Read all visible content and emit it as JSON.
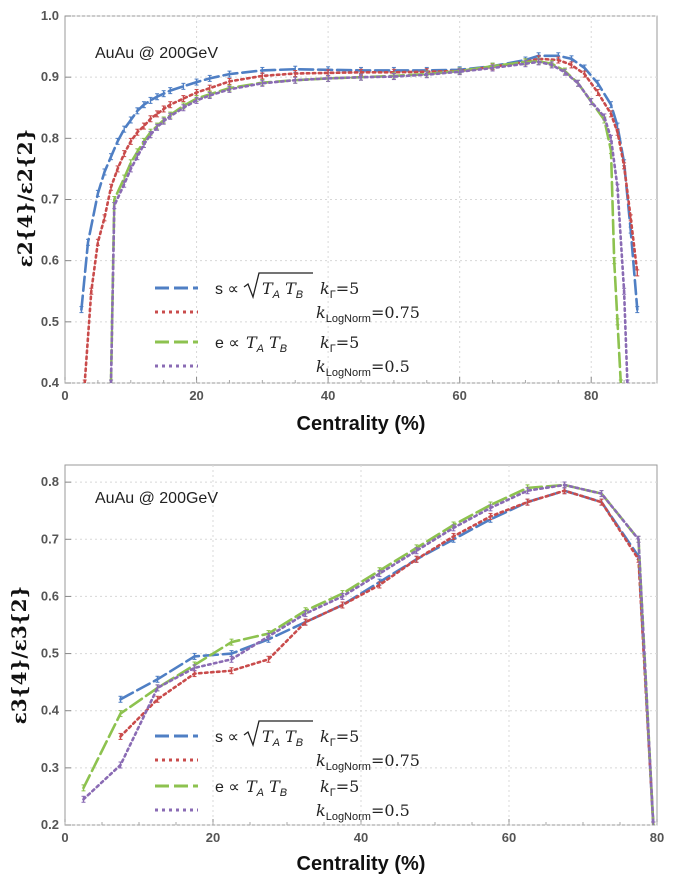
{
  "chart_data": [
    {
      "type": "line",
      "annotation": "AuAu @ 200GeV",
      "xlabel": "Centrality (%)",
      "ylabel": "ε2{4}/ε2{2}",
      "xlim": [
        0,
        90
      ],
      "ylim": [
        0.4,
        1.0
      ],
      "xticks": [
        "0",
        "20",
        "40",
        "60",
        "80"
      ],
      "yticks": [
        "0.4",
        "0.5",
        "0.6",
        "0.7",
        "0.8",
        "0.9",
        "1.0"
      ],
      "legend": [
        {
          "label": "s ∝ √(TA TB)",
          "k": "kΓ=5"
        },
        {
          "label": "",
          "k": "kLogNorm=0.75"
        },
        {
          "label": "e ∝ TA TB",
          "k": "kΓ=5"
        },
        {
          "label": "",
          "k": "kLogNorm=0.5"
        }
      ],
      "series": [
        {
          "color": "#4f7fc4",
          "style": "dashed",
          "x": [
            2.5,
            3.5,
            5,
            6,
            7,
            8,
            9,
            10,
            11,
            12,
            13,
            14,
            15,
            16,
            18,
            20,
            22,
            25,
            30,
            35,
            40,
            45,
            50,
            55,
            60,
            65,
            70,
            72,
            75,
            77,
            79,
            81,
            83,
            84,
            85,
            86,
            87
          ],
          "y": [
            0.52,
            0.63,
            0.71,
            0.745,
            0.77,
            0.795,
            0.815,
            0.83,
            0.845,
            0.855,
            0.862,
            0.868,
            0.873,
            0.878,
            0.885,
            0.892,
            0.898,
            0.905,
            0.911,
            0.913,
            0.912,
            0.911,
            0.911,
            0.911,
            0.912,
            0.918,
            0.928,
            0.935,
            0.935,
            0.93,
            0.915,
            0.89,
            0.855,
            0.82,
            0.76,
            0.65,
            0.52
          ]
        },
        {
          "color": "#c94b4b",
          "style": "dotted",
          "x": [
            3,
            4,
            5,
            6,
            7,
            8,
            9,
            10,
            11,
            12,
            13,
            14,
            15,
            16,
            18,
            20,
            22,
            25,
            30,
            35,
            40,
            45,
            50,
            55,
            60,
            65,
            70,
            72,
            75,
            77,
            79,
            81,
            83,
            84,
            85,
            86,
            87
          ],
          "y": [
            0.4,
            0.55,
            0.63,
            0.67,
            0.72,
            0.75,
            0.775,
            0.795,
            0.81,
            0.82,
            0.832,
            0.84,
            0.848,
            0.855,
            0.865,
            0.875,
            0.882,
            0.893,
            0.902,
            0.906,
            0.907,
            0.908,
            0.908,
            0.909,
            0.91,
            0.917,
            0.925,
            0.93,
            0.928,
            0.92,
            0.905,
            0.875,
            0.84,
            0.81,
            0.755,
            0.67,
            0.58
          ]
        },
        {
          "color": "#8dc24f",
          "style": "dashed",
          "x": [
            7,
            7.5,
            9,
            10,
            11,
            12,
            13,
            14,
            15,
            16,
            18,
            20,
            22,
            25,
            30,
            35,
            40,
            45,
            50,
            55,
            60,
            65,
            70,
            72,
            74,
            76,
            78,
            80,
            82,
            83,
            83.5,
            84,
            84.5
          ],
          "y": [
            0.4,
            0.7,
            0.735,
            0.76,
            0.778,
            0.795,
            0.81,
            0.82,
            0.83,
            0.838,
            0.853,
            0.865,
            0.872,
            0.882,
            0.891,
            0.895,
            0.898,
            0.9,
            0.902,
            0.905,
            0.91,
            0.918,
            0.925,
            0.926,
            0.922,
            0.91,
            0.89,
            0.86,
            0.83,
            0.78,
            0.6,
            0.5,
            0.4
          ]
        },
        {
          "color": "#8a6bb4",
          "style": "dotted",
          "x": [
            7,
            7.5,
            9,
            10,
            11,
            12,
            13,
            14,
            15,
            16,
            18,
            20,
            22,
            25,
            30,
            35,
            40,
            45,
            50,
            55,
            60,
            65,
            70,
            72,
            74,
            76,
            78,
            80,
            82,
            83,
            84,
            85,
            85.5
          ],
          "y": [
            0.4,
            0.69,
            0.725,
            0.75,
            0.77,
            0.79,
            0.806,
            0.818,
            0.828,
            0.836,
            0.85,
            0.862,
            0.87,
            0.88,
            0.89,
            0.895,
            0.898,
            0.9,
            0.901,
            0.904,
            0.909,
            0.915,
            0.922,
            0.925,
            0.92,
            0.908,
            0.89,
            0.86,
            0.835,
            0.8,
            0.72,
            0.55,
            0.4
          ]
        }
      ]
    },
    {
      "type": "line",
      "annotation": "AuAu @ 200GeV",
      "xlabel": "Centrality (%)",
      "ylabel": "ε3{4}/ε3{2}",
      "xlim": [
        0,
        80
      ],
      "ylim": [
        0.2,
        0.83
      ],
      "xticks": [
        "0",
        "20",
        "40",
        "60",
        "80"
      ],
      "yticks": [
        "0.2",
        "0.3",
        "0.4",
        "0.5",
        "0.6",
        "0.7",
        "0.8"
      ],
      "legend": [
        {
          "label": "s ∝ √(TA TB)",
          "k": "kΓ=5"
        },
        {
          "label": "",
          "k": "kLogNorm=0.75"
        },
        {
          "label": "e ∝ TA TB",
          "k": "kΓ=5"
        },
        {
          "label": "",
          "k": "kLogNorm=0.5"
        }
      ],
      "series": [
        {
          "color": "#4f7fc4",
          "style": "dashed",
          "x": [
            7.5,
            12.5,
            17.5,
            22.5,
            27.5,
            32.5,
            37.5,
            42.5,
            47.5,
            52.5,
            57.5,
            62.5,
            67.5,
            72.5,
            77.5,
            79.5
          ],
          "y": [
            0.42,
            0.455,
            0.495,
            0.5,
            0.525,
            0.555,
            0.585,
            0.625,
            0.665,
            0.7,
            0.735,
            0.765,
            0.785,
            0.765,
            0.67,
            0.2
          ]
        },
        {
          "color": "#c94b4b",
          "style": "dotted",
          "x": [
            7.5,
            12.5,
            17.5,
            22.5,
            27.5,
            32.5,
            37.5,
            42.5,
            47.5,
            52.5,
            57.5,
            62.5,
            67.5,
            72.5,
            77.5,
            79.5
          ],
          "y": [
            0.355,
            0.42,
            0.465,
            0.47,
            0.49,
            0.555,
            0.585,
            0.62,
            0.665,
            0.705,
            0.74,
            0.765,
            0.785,
            0.765,
            0.665,
            0.2
          ]
        },
        {
          "color": "#8dc24f",
          "style": "dashed",
          "x": [
            2.5,
            7.5,
            12.5,
            17.5,
            22.5,
            27.5,
            32.5,
            37.5,
            42.5,
            47.5,
            52.5,
            57.5,
            62.5,
            67.5,
            72.5,
            77.5,
            79.5
          ],
          "y": [
            0.265,
            0.395,
            0.44,
            0.48,
            0.52,
            0.535,
            0.575,
            0.605,
            0.645,
            0.685,
            0.725,
            0.76,
            0.79,
            0.795,
            0.78,
            0.7,
            0.2
          ]
        },
        {
          "color": "#8a6bb4",
          "style": "dotted",
          "x": [
            2.5,
            7.5,
            12.5,
            17.5,
            22.5,
            27.5,
            32.5,
            37.5,
            42.5,
            47.5,
            52.5,
            57.5,
            62.5,
            67.5,
            72.5,
            77.5,
            79.5
          ],
          "y": [
            0.245,
            0.305,
            0.44,
            0.475,
            0.49,
            0.53,
            0.57,
            0.6,
            0.64,
            0.68,
            0.72,
            0.755,
            0.785,
            0.795,
            0.78,
            0.7,
            0.2
          ]
        }
      ]
    }
  ]
}
